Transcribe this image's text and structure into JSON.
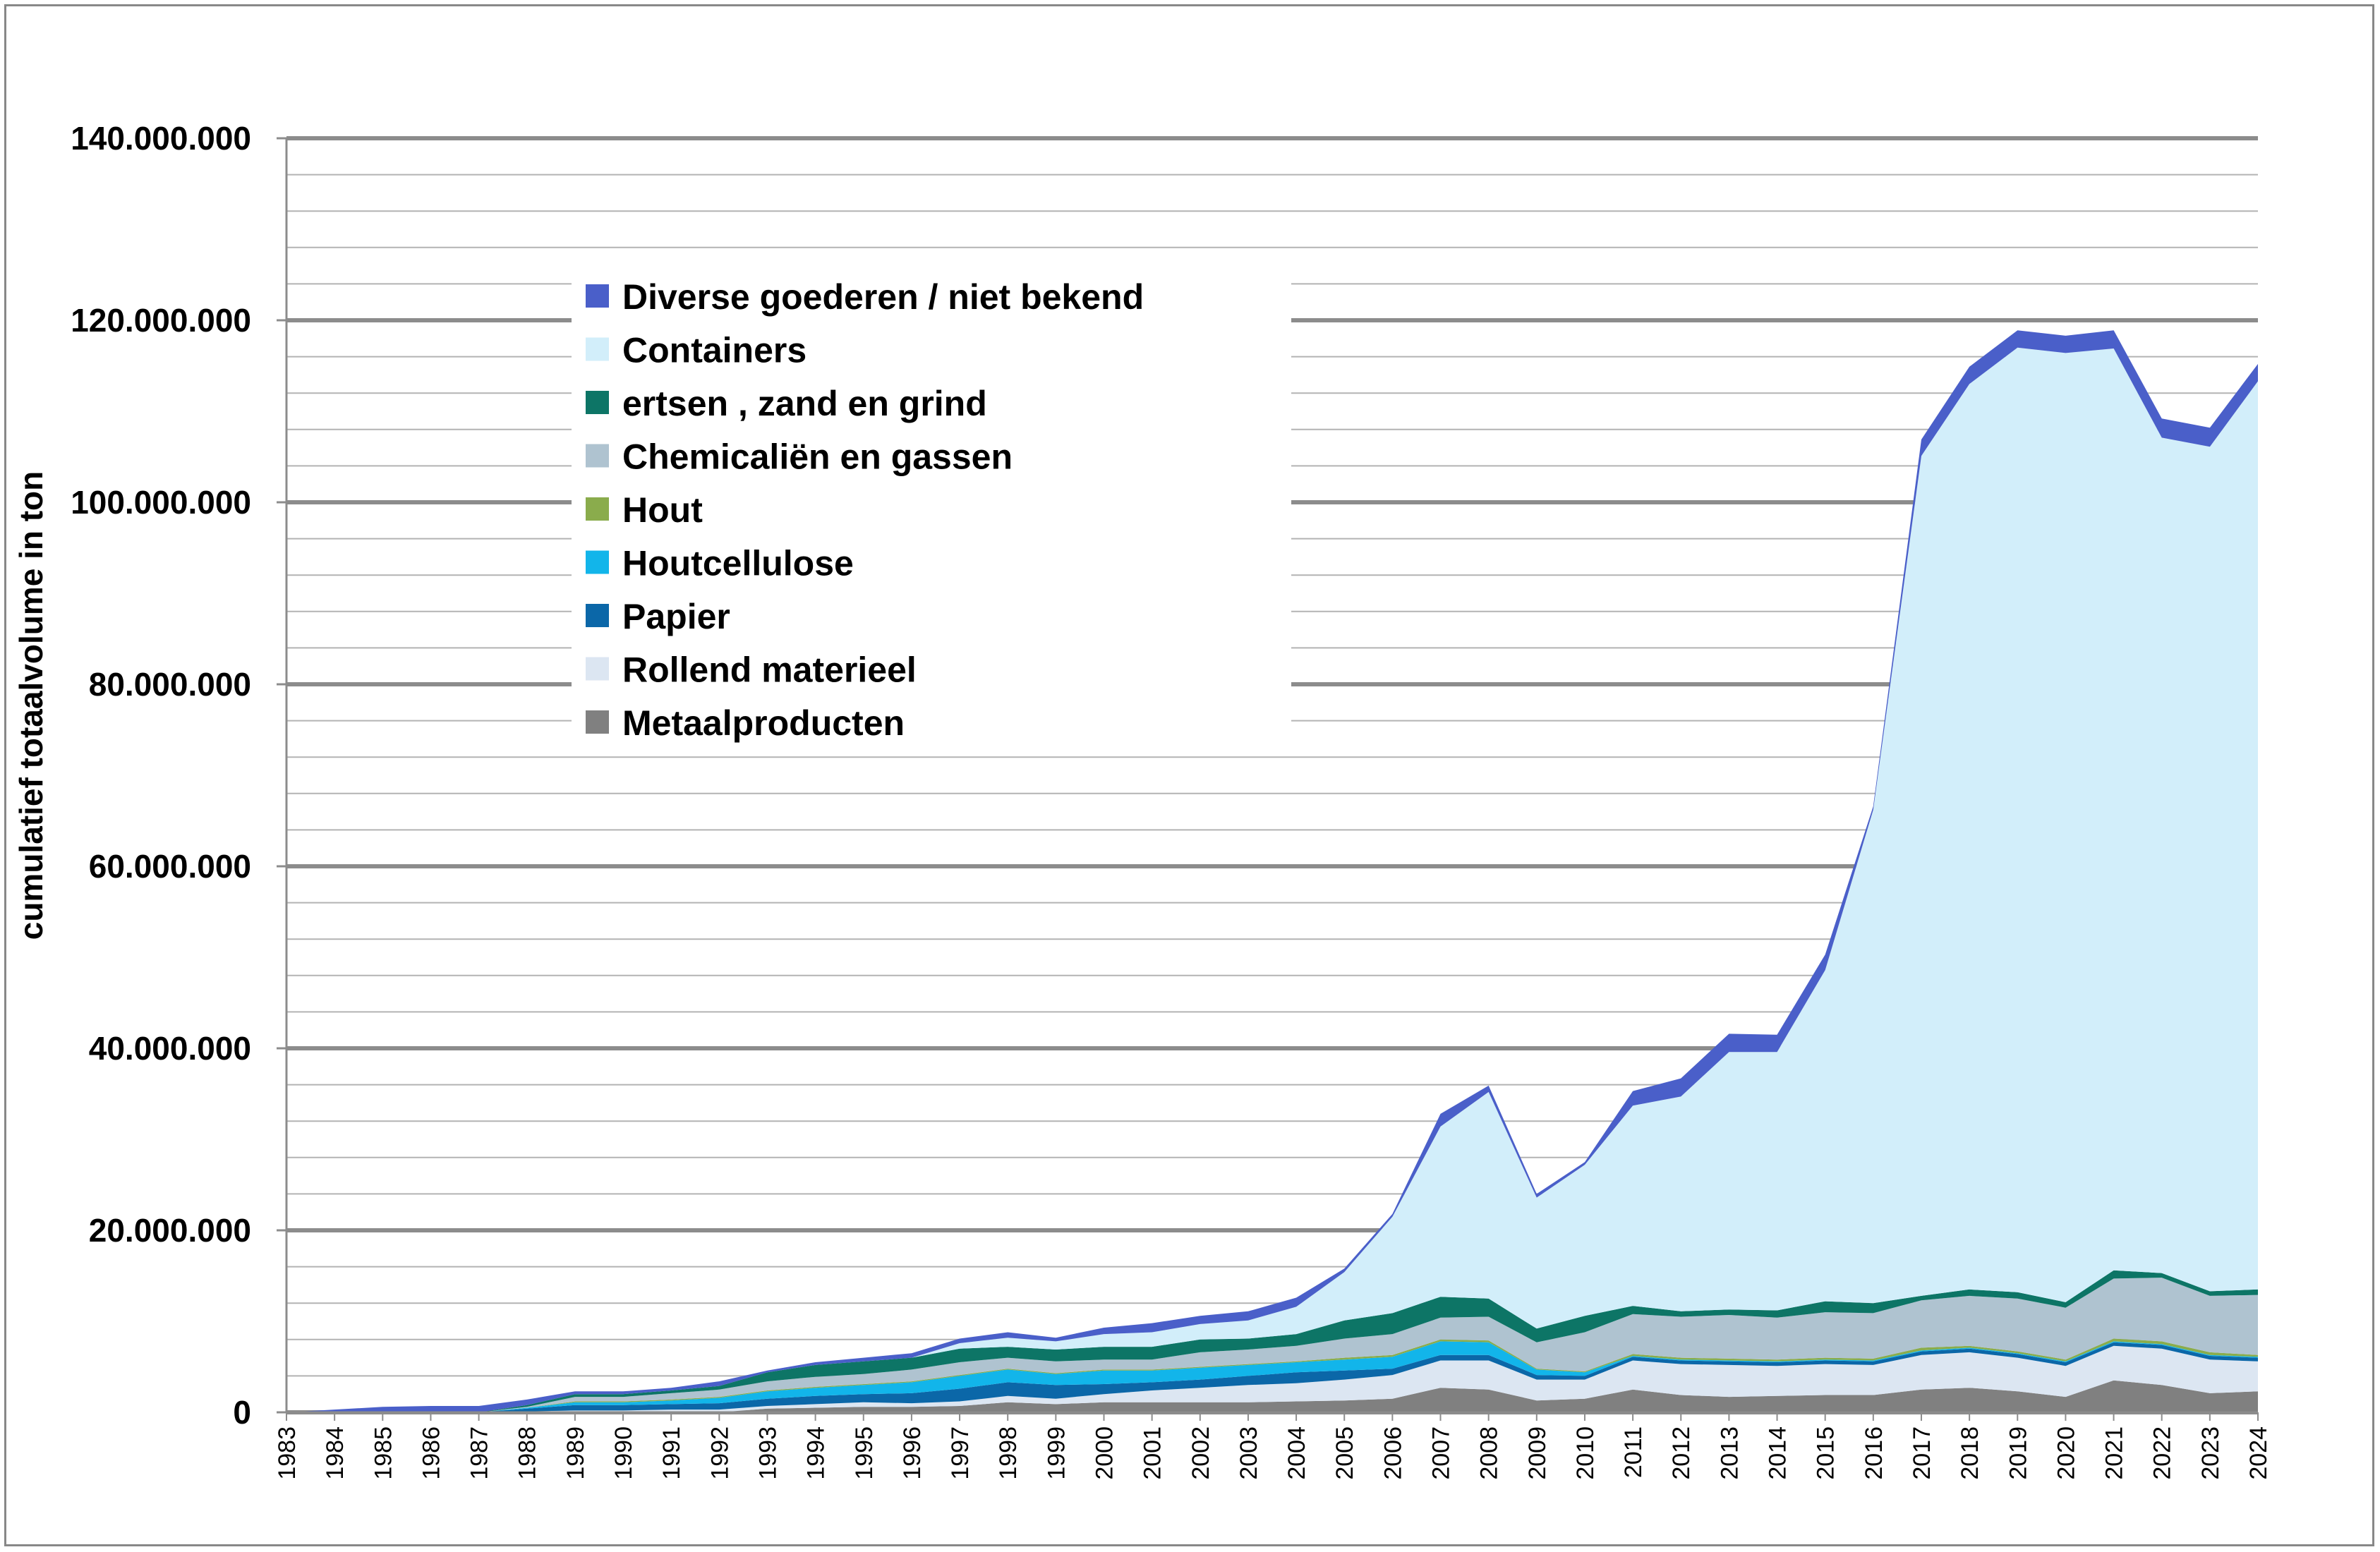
{
  "chart_data": {
    "type": "area",
    "stacked": true,
    "title": "",
    "xlabel": "",
    "ylabel": "cumulatief totaalvolume in ton",
    "ylim": [
      0,
      140000000
    ],
    "y_ticks": [
      {
        "value": 0,
        "label": "0"
      },
      {
        "value": 20000000,
        "label": "20.000.000"
      },
      {
        "value": 40000000,
        "label": "40.000.000"
      },
      {
        "value": 60000000,
        "label": "60.000.000"
      },
      {
        "value": 80000000,
        "label": "80.000.000"
      },
      {
        "value": 100000000,
        "label": "100.000.000"
      },
      {
        "value": 120000000,
        "label": "120.000.000"
      },
      {
        "value": 140000000,
        "label": "140.000.000"
      }
    ],
    "grid": true,
    "legend_position": "top-left",
    "x": [
      "1983",
      "1984",
      "1985",
      "1986",
      "1987",
      "1988",
      "1989",
      "1990",
      "1991",
      "1992",
      "1993",
      "1994",
      "1995",
      "1996",
      "1997",
      "1998",
      "1999",
      "2000",
      "2001",
      "2002",
      "2003",
      "2004",
      "2005",
      "2006",
      "2007",
      "2008",
      "2009",
      "2010",
      "2011",
      "2012",
      "2013",
      "2014",
      "2015",
      "2016",
      "2017",
      "2018",
      "2019",
      "2020",
      "2021",
      "2022",
      "2023",
      "2024"
    ],
    "series": [
      {
        "name": "Metaalproducten",
        "color": "#808080",
        "values": [
          0,
          0,
          0,
          0,
          0,
          0,
          0,
          0,
          0,
          0,
          400000,
          500000,
          600000,
          600000,
          700000,
          1100000,
          900000,
          1100000,
          1100000,
          1100000,
          1100000,
          1200000,
          1300000,
          1500000,
          2700000,
          2500000,
          1300000,
          1500000,
          2500000,
          1900000,
          1700000,
          1800000,
          1900000,
          1900000,
          2500000,
          2700000,
          2300000,
          1700000,
          3500000,
          3000000,
          2100000,
          2300000
        ]
      },
      {
        "name": "Rollend materieel",
        "color": "#dce6f2",
        "values": [
          0,
          0,
          0,
          0,
          0,
          100000,
          200000,
          200000,
          300000,
          300000,
          300000,
          400000,
          500000,
          400000,
          500000,
          700000,
          600000,
          900000,
          1300000,
          1600000,
          1900000,
          2000000,
          2300000,
          2600000,
          3000000,
          3200000,
          2300000,
          2100000,
          3200000,
          3400000,
          3500000,
          3300000,
          3400000,
          3300000,
          3800000,
          3900000,
          3700000,
          3400000,
          3800000,
          4000000,
          3700000,
          3300000
        ]
      },
      {
        "name": "Papier",
        "color": "#0b67a8",
        "values": [
          0,
          0,
          0,
          0,
          0,
          300000,
          600000,
          600000,
          600000,
          700000,
          800000,
          900000,
          900000,
          1100000,
          1400000,
          1500000,
          1500000,
          1100000,
          900000,
          900000,
          1000000,
          1200000,
          1000000,
          700000,
          600000,
          600000,
          500000,
          400000,
          400000,
          400000,
          400000,
          400000,
          400000,
          400000,
          400000,
          400000,
          400000,
          400000,
          400000,
          400000,
          400000,
          400000
        ]
      },
      {
        "name": "Houtcellulose",
        "color": "#12b5ea",
        "values": [
          0,
          0,
          0,
          0,
          0,
          100000,
          300000,
          300000,
          400000,
          600000,
          800000,
          900000,
          1000000,
          1200000,
          1400000,
          1400000,
          1200000,
          1500000,
          1300000,
          1300000,
          1200000,
          1100000,
          1200000,
          1300000,
          1500000,
          1400000,
          600000,
          400000,
          100000,
          100000,
          100000,
          100000,
          100000,
          100000,
          100000,
          100000,
          100000,
          100000,
          100000,
          100000,
          100000,
          100000
        ]
      },
      {
        "name": "Hout",
        "color": "#8aac4c",
        "values": [
          0,
          0,
          0,
          0,
          0,
          0,
          100000,
          100000,
          100000,
          100000,
          100000,
          100000,
          100000,
          100000,
          100000,
          100000,
          100000,
          100000,
          100000,
          100000,
          100000,
          100000,
          200000,
          200000,
          200000,
          200000,
          100000,
          100000,
          200000,
          200000,
          200000,
          200000,
          200000,
          200000,
          300000,
          200000,
          200000,
          200000,
          300000,
          300000,
          300000,
          200000
        ]
      },
      {
        "name": "Chemicaliën en gassen",
        "color": "#afc3d0",
        "values": [
          0,
          0,
          0,
          0,
          0,
          100000,
          500000,
          500000,
          700000,
          800000,
          1000000,
          1100000,
          1100000,
          1300000,
          1400000,
          1200000,
          1300000,
          1100000,
          1100000,
          1600000,
          1600000,
          1700000,
          2100000,
          2300000,
          2400000,
          2600000,
          2900000,
          4300000,
          4400000,
          4500000,
          4800000,
          4600000,
          5000000,
          5000000,
          5200000,
          5500000,
          5800000,
          5700000,
          6600000,
          7000000,
          6200000,
          6600000
        ]
      },
      {
        "name": "ertsen , zand en grind",
        "color": "#0d7566",
        "values": [
          0,
          0,
          0,
          0,
          0,
          200000,
          300000,
          300000,
          300000,
          400000,
          1000000,
          1300000,
          1400000,
          1300000,
          1500000,
          1200000,
          1300000,
          1400000,
          1400000,
          1400000,
          1200000,
          1300000,
          2000000,
          2300000,
          2300000,
          2000000,
          1500000,
          1800000,
          900000,
          600000,
          600000,
          800000,
          1200000,
          1100000,
          500000,
          700000,
          700000,
          600000,
          900000,
          500000,
          500000,
          600000
        ]
      },
      {
        "name": "Containers",
        "color": "#d2eefa",
        "values": [
          0,
          0,
          0,
          0,
          0,
          0,
          0,
          0,
          0,
          0,
          0,
          0,
          0,
          0,
          600000,
          1000000,
          900000,
          1400000,
          1600000,
          1700000,
          2000000,
          3000000,
          5300000,
          10600000,
          18700000,
          22700000,
          14400000,
          16600000,
          22000000,
          23600000,
          28300000,
          28400000,
          36400000,
          54200000,
          92300000,
          99500000,
          103800000,
          104300000,
          101300000,
          91800000,
          92800000,
          99800000
        ]
      },
      {
        "name": "Diverse goederen / niet bekend",
        "color": "#4a5fc9",
        "values": [
          0,
          300000,
          600000,
          700000,
          700000,
          600000,
          300000,
          300000,
          300000,
          500000,
          200000,
          300000,
          400000,
          500000,
          500000,
          600000,
          400000,
          700000,
          1000000,
          900000,
          1000000,
          1000000,
          400000,
          300000,
          1400000,
          700000,
          400000,
          300000,
          1600000,
          2000000,
          2000000,
          1900000,
          1700000,
          400000,
          1800000,
          1900000,
          1900000,
          1900000,
          2000000,
          2100000,
          2100000,
          1900000
        ]
      }
    ]
  },
  "legend": {
    "items": [
      {
        "label": "Diverse goederen / niet bekend",
        "color": "#4a5fc9"
      },
      {
        "label": "Containers",
        "color": "#d2eefa"
      },
      {
        "label": "ertsen , zand en grind",
        "color": "#0d7566"
      },
      {
        "label": "Chemicaliën en gassen",
        "color": "#afc3d0"
      },
      {
        "label": "Hout",
        "color": "#8aac4c"
      },
      {
        "label": "Houtcellulose",
        "color": "#12b5ea"
      },
      {
        "label": "Papier",
        "color": "#0b67a8"
      },
      {
        "label": "Rollend materieel",
        "color": "#dce6f2"
      },
      {
        "label": "Metaalproducten",
        "color": "#808080"
      }
    ]
  }
}
